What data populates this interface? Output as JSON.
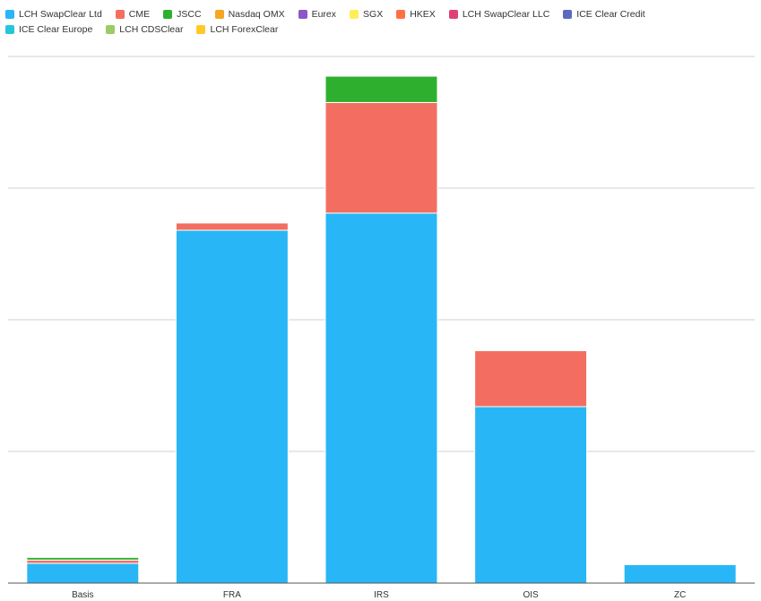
{
  "chart_data": {
    "type": "bar",
    "stacked": true,
    "categories": [
      "Basis",
      "FRA",
      "IRS",
      "OIS",
      "ZC"
    ],
    "series": [
      {
        "name": "LCH SwapClear Ltd",
        "color": "#29b6f6",
        "values": [
          1.5,
          26.8,
          28.1,
          13.4,
          1.4
        ]
      },
      {
        "name": "CME",
        "color": "#f36e60",
        "values": [
          0.25,
          0.55,
          8.4,
          4.25,
          0
        ]
      },
      {
        "name": "JSCC",
        "color": "#2eb02e",
        "values": [
          0.2,
          0,
          2.0,
          0,
          0
        ]
      },
      {
        "name": "Nasdaq OMX",
        "color": "#f5a623",
        "values": [
          0,
          0,
          0,
          0,
          0
        ]
      },
      {
        "name": "Eurex",
        "color": "#8a56c9",
        "values": [
          0,
          0,
          0,
          0,
          0
        ]
      },
      {
        "name": "SGX",
        "color": "#ffee58",
        "values": [
          0,
          0,
          0,
          0,
          0
        ]
      },
      {
        "name": "HKEX",
        "color": "#ff7043",
        "values": [
          0,
          0,
          0,
          0,
          0
        ]
      },
      {
        "name": "LCH SwapClear LLC",
        "color": "#e0407a",
        "values": [
          0,
          0,
          0,
          0,
          0
        ]
      },
      {
        "name": "ICE Clear Credit",
        "color": "#5c6bc0",
        "values": [
          0,
          0,
          0,
          0,
          0
        ]
      },
      {
        "name": "ICE Clear Europe",
        "color": "#26c6da",
        "values": [
          0,
          0,
          0,
          0,
          0
        ]
      },
      {
        "name": "LCH CDSClear",
        "color": "#9ccc65",
        "values": [
          0,
          0,
          0,
          0,
          0
        ]
      },
      {
        "name": "LCH ForexClear",
        "color": "#ffca28",
        "values": [
          0,
          0,
          0,
          0,
          0
        ]
      }
    ],
    "ylim": [
      0,
      40
    ],
    "y_gridlines": [
      0,
      10,
      20,
      30,
      40
    ],
    "y_tick_labels_shown": false,
    "grid": true,
    "legend_position": "top-left",
    "title": "",
    "xlabel": "",
    "ylabel": ""
  }
}
